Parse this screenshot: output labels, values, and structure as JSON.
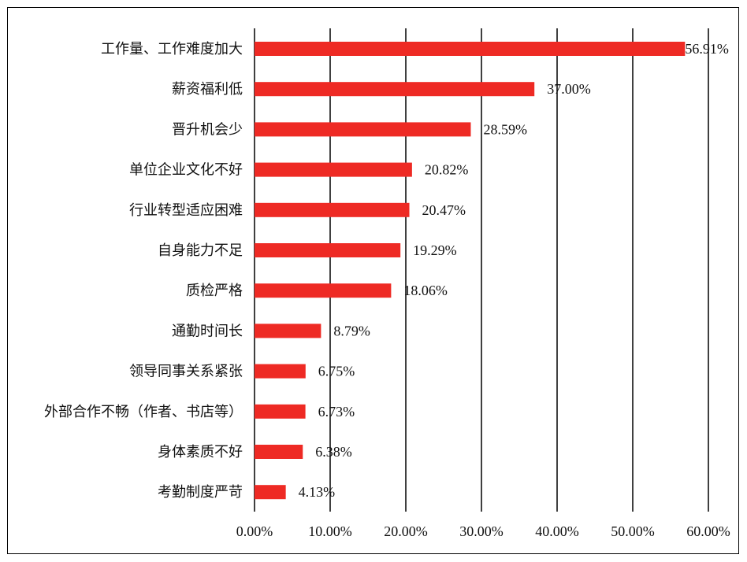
{
  "chart_data": {
    "type": "bar",
    "orientation": "horizontal",
    "categories": [
      "工作量、工作难度加大",
      "薪资福利低",
      "晋升机会少",
      "单位企业文化不好",
      "行业转型适应困难",
      "自身能力不足",
      "质检严格",
      "通勤时间长",
      "领导同事关系紧张",
      "外部合作不畅（作者、书店等）",
      "身体素质不好",
      "考勤制度严苛"
    ],
    "values": [
      56.91,
      37.0,
      28.59,
      20.82,
      20.47,
      19.29,
      18.06,
      8.79,
      6.75,
      6.73,
      6.38,
      4.13
    ],
    "value_labels": [
      "56.91%",
      "37.00%",
      "28.59%",
      "20.82%",
      "20.47%",
      "19.29%",
      "18.06%",
      "8.79%",
      "6.75%",
      "6.73%",
      "6.38%",
      "4.13%"
    ],
    "x_ticks": [
      0,
      10,
      20,
      30,
      40,
      50,
      60
    ],
    "x_tick_labels": [
      "0.00%",
      "10.00%",
      "20.00%",
      "30.00%",
      "40.00%",
      "50.00%",
      "60.00%"
    ],
    "xlim": [
      0,
      60
    ],
    "grid": "vertical",
    "legend": "none",
    "bar_color": "#ee2a24",
    "title": "",
    "xlabel": "",
    "ylabel": ""
  }
}
